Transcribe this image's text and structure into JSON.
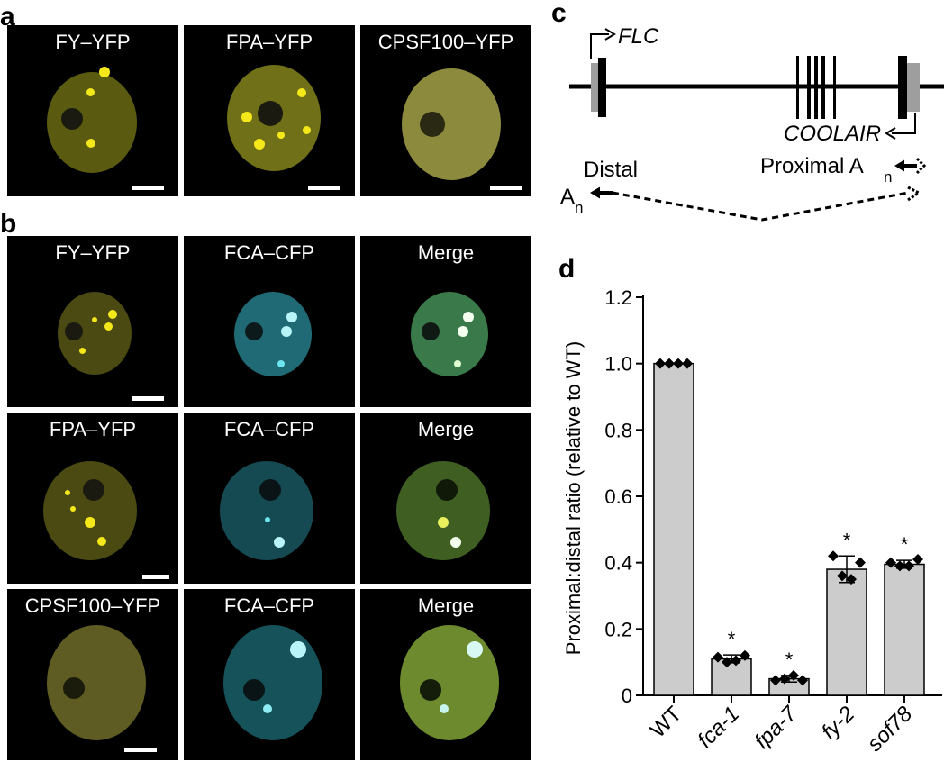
{
  "panel_a": {
    "letter": "a",
    "images": [
      {
        "label": "FY–YFP"
      },
      {
        "label": "FPA–YFP"
      },
      {
        "label": "CPSF100–YFP"
      }
    ]
  },
  "panel_b": {
    "letter": "b",
    "rows": [
      [
        "FY–YFP",
        "FCA–CFP",
        "Merge"
      ],
      [
        "FPA–YFP",
        "FCA–CFP",
        "Merge"
      ],
      [
        "CPSF100–YFP",
        "FCA–CFP",
        "Merge"
      ]
    ]
  },
  "panel_c": {
    "letter": "c",
    "gene_label": "FLC",
    "antisense_label": "COOLAIR",
    "distal_label": "Distal",
    "proximal_label": "Proximal A",
    "polyA_distal": "A",
    "polyA_subscript": "n"
  },
  "panel_d": {
    "letter": "d",
    "chart_data": {
      "type": "bar",
      "categories": [
        "WT",
        "fca-1",
        "fpa-7",
        "fy-2",
        "sof78"
      ],
      "values": [
        1.0,
        0.11,
        0.05,
        0.38,
        0.395
      ],
      "errors": [
        0.0,
        0.012,
        0.01,
        0.04,
        0.012
      ],
      "points": [
        [
          1.0,
          1.0,
          1.0,
          1.0
        ],
        [
          0.115,
          0.1,
          0.105,
          0.12
        ],
        [
          0.045,
          0.05,
          0.06,
          0.045
        ],
        [
          0.42,
          0.36,
          0.35,
          0.4
        ],
        [
          0.4,
          0.39,
          0.39,
          0.41
        ]
      ],
      "significance": [
        "",
        "*",
        "*",
        "*",
        "*"
      ],
      "ylabel": "Proximal:distal ratio (relative to WT)",
      "ylim": [
        0,
        1.2
      ],
      "yticks": [
        "0",
        "0.2",
        "0.4",
        "0.6",
        "0.8",
        "1.0",
        "1.2"
      ],
      "bar_color": "#cccccc"
    }
  }
}
